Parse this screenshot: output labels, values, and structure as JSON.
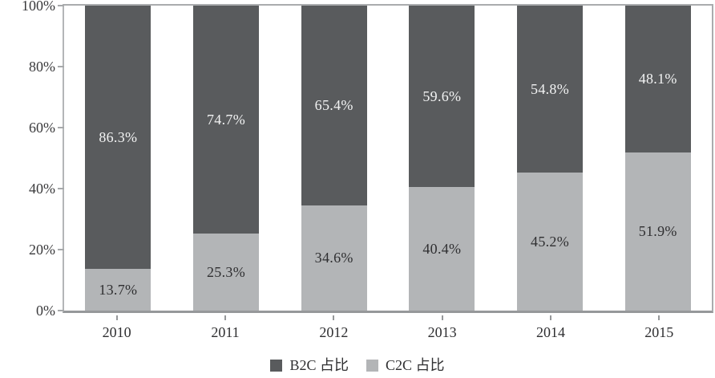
{
  "chart_data": {
    "type": "bar",
    "stacked": true,
    "title": "",
    "xlabel": "",
    "ylabel": "",
    "ylim": [
      0,
      100
    ],
    "grid": false,
    "legend_position": "bottom",
    "categories": [
      "2010",
      "2011",
      "2012",
      "2013",
      "2014",
      "2015"
    ],
    "series": [
      {
        "name": "B2C 占比",
        "color": "#595b5d",
        "values": [
          86.3,
          74.7,
          65.4,
          59.6,
          54.8,
          48.1
        ],
        "labels": [
          "86.3%",
          "74.7%",
          "65.4%",
          "59.6%",
          "54.8%",
          "48.1%"
        ]
      },
      {
        "name": "C2C 占比",
        "color": "#b3b5b7",
        "values": [
          13.7,
          25.3,
          34.6,
          40.4,
          45.2,
          51.9
        ],
        "labels": [
          "13.7%",
          "25.3%",
          "34.6%",
          "40.4%",
          "45.2%",
          "51.9%"
        ]
      }
    ],
    "yticks": [
      {
        "label": "0%",
        "value": 0
      },
      {
        "label": "20%",
        "value": 20
      },
      {
        "label": "40%",
        "value": 40
      },
      {
        "label": "60%",
        "value": 60
      },
      {
        "label": "80%",
        "value": 80
      },
      {
        "label": "100%",
        "value": 100
      }
    ],
    "axis_color": "#96989a",
    "border_color": "#aaacae"
  }
}
